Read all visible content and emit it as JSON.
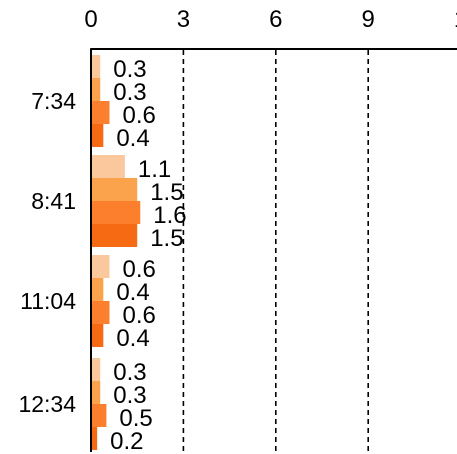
{
  "chart_data": {
    "type": "bar",
    "orientation": "horizontal",
    "categories": [
      "7:34",
      "8:41",
      "11:04",
      "12:34"
    ],
    "series": [
      {
        "color": "#fbc79c",
        "values": [
          0.3,
          1.1,
          0.6,
          0.3
        ]
      },
      {
        "color": "#fba24c",
        "values": [
          0.3,
          1.5,
          0.4,
          0.3
        ]
      },
      {
        "color": "#fb7f2c",
        "values": [
          0.6,
          1.6,
          0.6,
          0.5
        ]
      },
      {
        "color": "#f56a12",
        "values": [
          0.4,
          1.5,
          0.4,
          0.2
        ]
      }
    ],
    "x_ticks": [
      "0",
      "3",
      "6",
      "9",
      "1"
    ],
    "xlim": [
      0,
      12
    ],
    "x_axis_position": "top",
    "grid": "vertical dashed",
    "legend": "none",
    "data_labels": true
  }
}
